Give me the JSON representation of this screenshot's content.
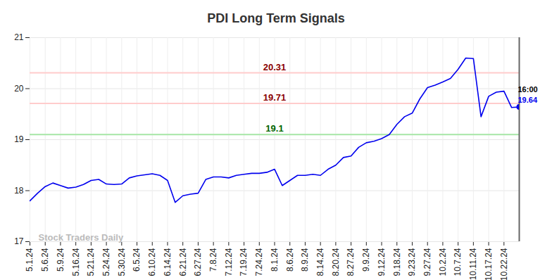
{
  "chart_data": {
    "type": "line",
    "title": "PDI Long Term Signals",
    "categories": [
      "5.1.24",
      null,
      "5.6.24",
      null,
      "5.9.24",
      null,
      "5.16.24",
      null,
      "5.21.24",
      null,
      "5.24.24",
      null,
      "5.30.24",
      null,
      "6.5.24",
      null,
      "6.10.24",
      null,
      "6.14.24",
      null,
      "6.21.24",
      null,
      "6.27.24",
      null,
      "7.8.24",
      null,
      "7.12.24",
      null,
      "7.19.24",
      null,
      "7.24.24",
      null,
      "8.1.24",
      null,
      "8.6.24",
      null,
      "8.9.24",
      null,
      "8.14.24",
      null,
      "8.20.24",
      null,
      "8.27.24",
      null,
      "9.9.24",
      null,
      "9.12.24",
      null,
      "9.18.24",
      null,
      "9.23.24",
      null,
      "9.27.24",
      null,
      "10.2.24",
      null,
      "10.7.24",
      null,
      "10.11.24",
      null,
      "10.17.24",
      null,
      "10.22.24",
      null,
      null
    ],
    "series": [
      {
        "name": "PDI",
        "color": "#0000ee",
        "values": [
          17.8,
          17.95,
          18.08,
          18.15,
          18.1,
          18.05,
          18.07,
          18.12,
          18.2,
          18.22,
          18.13,
          18.12,
          18.13,
          18.25,
          18.29,
          18.31,
          18.33,
          18.3,
          18.2,
          17.77,
          17.9,
          17.93,
          17.95,
          18.22,
          18.27,
          18.27,
          18.25,
          18.3,
          18.32,
          18.34,
          18.34,
          18.36,
          18.42,
          18.1,
          18.2,
          18.3,
          18.3,
          18.32,
          18.3,
          18.42,
          18.5,
          18.65,
          18.68,
          18.85,
          18.94,
          18.97,
          19.02,
          19.1,
          19.3,
          19.45,
          19.52,
          19.8,
          20.02,
          20.07,
          20.13,
          20.2,
          20.38,
          20.6,
          20.59,
          19.45,
          19.85,
          19.93,
          19.95,
          19.63,
          19.64
        ]
      }
    ],
    "ylim": [
      17,
      21
    ],
    "yticks": [
      17,
      18,
      19,
      20,
      21
    ],
    "grid": true,
    "levels": [
      {
        "value": 20.31,
        "color": "#8b0000"
      },
      {
        "value": 19.71,
        "color": "#8b0000"
      },
      {
        "value": 19.1,
        "color": "#006400"
      }
    ],
    "last_label": {
      "time": "16:00",
      "value": 19.64
    },
    "watermark": "Stock Traders Daily"
  }
}
